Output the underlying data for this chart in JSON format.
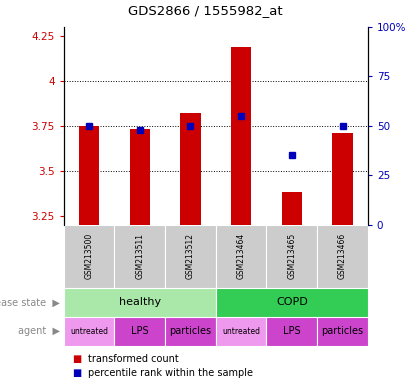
{
  "title": "GDS2866 / 1555982_at",
  "samples": [
    "GSM213500",
    "GSM213511",
    "GSM213512",
    "GSM213464",
    "GSM213465",
    "GSM213466"
  ],
  "red_values": [
    3.75,
    3.73,
    3.82,
    4.19,
    3.38,
    3.71
  ],
  "blue_percentiles": [
    50,
    48,
    50,
    55,
    35,
    50
  ],
  "ylim_left": [
    3.2,
    4.3
  ],
  "ylim_right": [
    0,
    100
  ],
  "yticks_left": [
    3.25,
    3.5,
    3.75,
    4.0,
    4.25
  ],
  "yticks_right": [
    0,
    25,
    50,
    75,
    100
  ],
  "ytick_labels_left": [
    "3.25",
    "3.5",
    "3.75",
    "4",
    "4.25"
  ],
  "ytick_labels_right": [
    "0",
    "25",
    "50",
    "75",
    "100%"
  ],
  "grid_yticks": [
    3.5,
    3.75,
    4.0
  ],
  "bar_bottom": 3.2,
  "bar_color": "#cc0000",
  "blue_marker_color": "#0000bb",
  "tick_label_color_left": "#cc0000",
  "tick_label_color_right": "#0000bb",
  "healthy_color": "#aae8aa",
  "copd_color": "#33cc55",
  "agent_color_light": "#ee99ee",
  "agent_color_dark": "#cc44cc",
  "gsm_bg_color": "#cccccc",
  "legend_items": [
    "transformed count",
    "percentile rank within the sample"
  ],
  "legend_colors": [
    "#cc0000",
    "#0000bb"
  ],
  "left_label_color": "#888888"
}
